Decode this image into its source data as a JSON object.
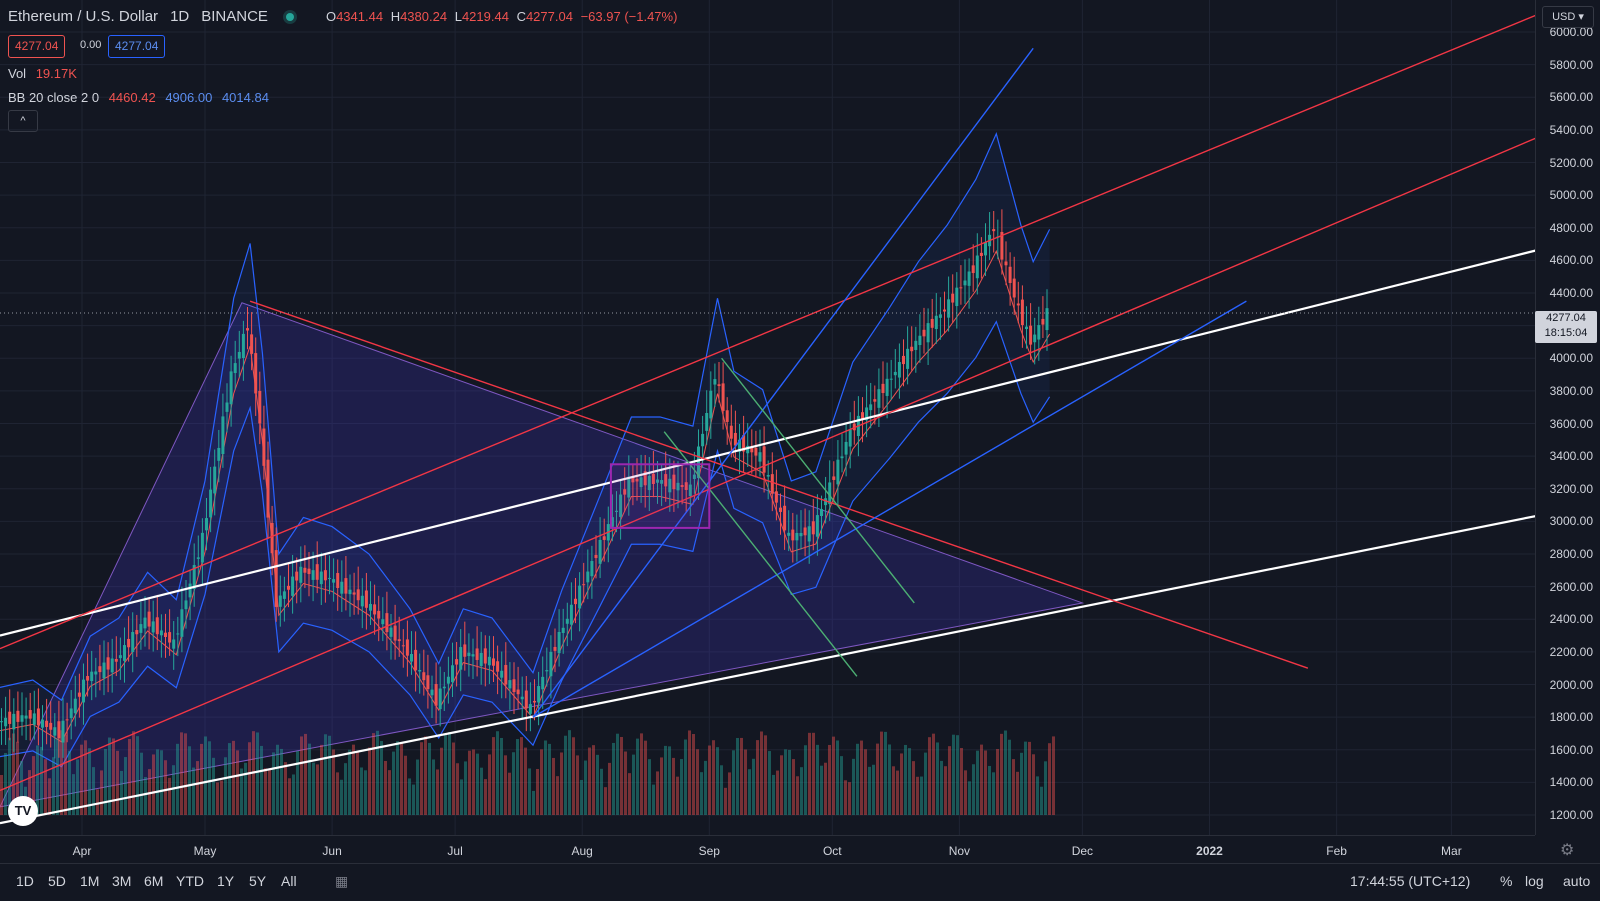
{
  "header": {
    "symbol": "Ethereum / U.S. Dollar",
    "interval": "1D",
    "exchange": "BINANCE",
    "ohlc": {
      "o_label": "O",
      "o": "4341.44",
      "h_label": "H",
      "h": "4380.24",
      "l_label": "L",
      "l": "4219.44",
      "c_label": "C",
      "c": "4277.04",
      "change": "−63.97 (−1.47%)"
    },
    "bid": "4277.04",
    "spread": "0.00",
    "ask": "4277.04"
  },
  "legend": {
    "vol_label": "Vol",
    "vol_value": "19.17K",
    "bb_label": "BB 20 close 2 0",
    "bb_basis": "4460.42",
    "bb_upper": "4906.00",
    "bb_lower": "4014.84",
    "collapse_icon": "^"
  },
  "price_axis": {
    "currency_btn": "USD ▾",
    "labels": [
      "6000.00",
      "5800.00",
      "5600.00",
      "5400.00",
      "5200.00",
      "5000.00",
      "4800.00",
      "4600.00",
      "4400.00",
      "4200.00",
      "4000.00",
      "3800.00",
      "3600.00",
      "3400.00",
      "3200.00",
      "3000.00",
      "2800.00",
      "2600.00",
      "2400.00",
      "2200.00",
      "2000.00",
      "1800.00",
      "1600.00",
      "1400.00",
      "1200.00"
    ],
    "last_price": "4277.04",
    "countdown": "18:15:04"
  },
  "time_axis": {
    "labels": [
      "Apr",
      "May",
      "Jun",
      "Jul",
      "Aug",
      "Sep",
      "Oct",
      "Nov",
      "Dec",
      "2022",
      "Feb",
      "Mar"
    ]
  },
  "bottom_bar": {
    "timeframes": [
      "1D",
      "5D",
      "1M",
      "3M",
      "6M",
      "YTD",
      "1Y",
      "5Y",
      "All"
    ],
    "clock": "17:44:55 (UTC+12)",
    "percent": "%",
    "log": "log",
    "auto": "auto"
  },
  "colors": {
    "background": "#131722",
    "up": "#26a69a",
    "down": "#ef5350",
    "bb_band": "#2962ff",
    "basis": "#ef5350",
    "trend_white": "#ffffff",
    "trend_red": "#f23645",
    "trend_blue": "#2962ff",
    "trend_green": "#4caf73",
    "rect_purple": "#9c27b0"
  },
  "chart_data": {
    "type": "candlestick",
    "y_range": [
      1200,
      6000
    ],
    "series_close": [
      [
        "2021-03-12",
        1770
      ],
      [
        "2021-03-20",
        1810
      ],
      [
        "2021-03-27",
        1700
      ],
      [
        "2021-04-03",
        2050
      ],
      [
        "2021-04-10",
        2150
      ],
      [
        "2021-04-17",
        2400
      ],
      [
        "2021-04-24",
        2250
      ],
      [
        "2021-05-01",
        2900
      ],
      [
        "2021-05-08",
        3900
      ],
      [
        "2021-05-12",
        4200
      ],
      [
        "2021-05-15",
        3600
      ],
      [
        "2021-05-19",
        2500
      ],
      [
        "2021-05-25",
        2700
      ],
      [
        "2021-06-01",
        2650
      ],
      [
        "2021-06-10",
        2500
      ],
      [
        "2021-06-20",
        2200
      ],
      [
        "2021-06-27",
        1900
      ],
      [
        "2021-07-03",
        2200
      ],
      [
        "2021-07-10",
        2150
      ],
      [
        "2021-07-20",
        1850
      ],
      [
        "2021-07-27",
        2300
      ],
      [
        "2021-08-05",
        2800
      ],
      [
        "2021-08-13",
        3250
      ],
      [
        "2021-08-20",
        3250
      ],
      [
        "2021-08-28",
        3200
      ],
      [
        "2021-09-03",
        3900
      ],
      [
        "2021-09-07",
        3500
      ],
      [
        "2021-09-14",
        3400
      ],
      [
        "2021-09-21",
        2900
      ],
      [
        "2021-09-27",
        2950
      ],
      [
        "2021-10-06",
        3550
      ],
      [
        "2021-10-15",
        3850
      ],
      [
        "2021-10-22",
        4100
      ],
      [
        "2021-10-29",
        4300
      ],
      [
        "2021-11-05",
        4550
      ],
      [
        "2021-11-10",
        4800
      ],
      [
        "2021-11-16",
        4300
      ],
      [
        "2021-11-19",
        4100
      ],
      [
        "2021-11-23",
        4277.04
      ]
    ]
  }
}
